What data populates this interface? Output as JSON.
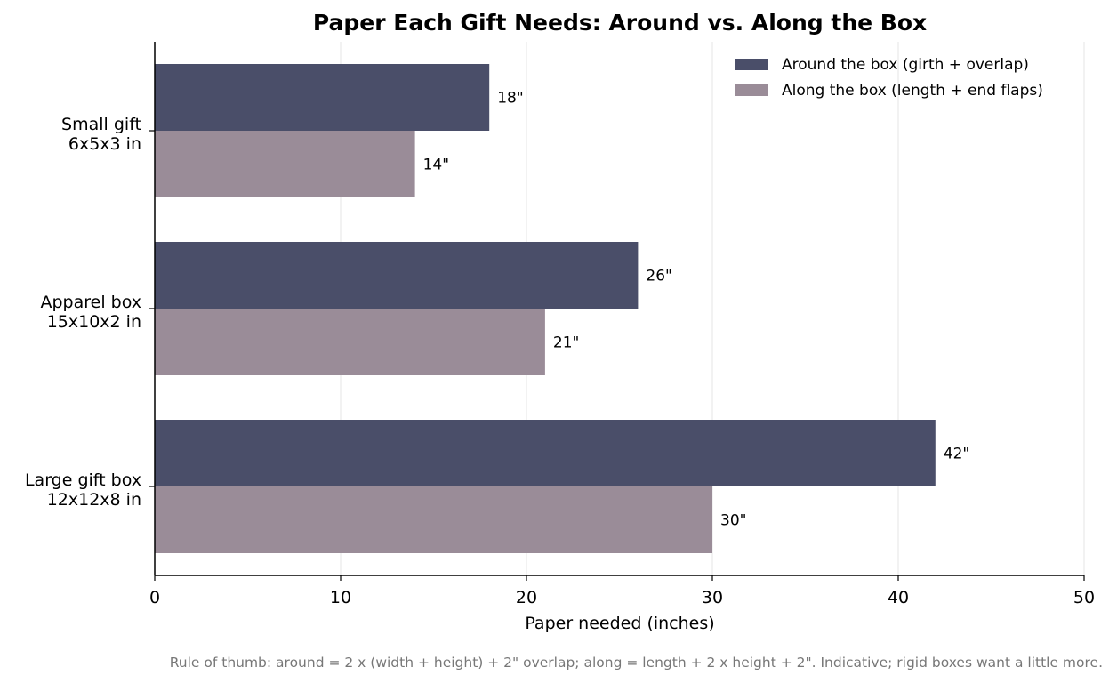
{
  "chart_data": {
    "type": "bar",
    "orientation": "horizontal",
    "title": "Paper Each Gift Needs: Around vs. Along the Box",
    "xlabel": "Paper needed (inches)",
    "ylabel": "",
    "xlim": [
      0,
      50
    ],
    "xticks": [
      0,
      10,
      20,
      30,
      40,
      50
    ],
    "grid": "vertical",
    "legend_position": "top-right",
    "categories": [
      [
        "Small gift",
        "6x5x3 in"
      ],
      [
        "Apparel box",
        "15x10x2 in"
      ],
      [
        "Large gift box",
        "12x12x8 in"
      ]
    ],
    "series": [
      {
        "name": "Around the box (girth + overlap)",
        "color": "#4a4e69",
        "values": [
          18,
          26,
          42
        ],
        "labels": [
          "18\"",
          "26\"",
          "42\""
        ]
      },
      {
        "name": "Along the box (length + end flaps)",
        "color": "#9a8c98",
        "values": [
          14,
          21,
          30
        ],
        "labels": [
          "14\"",
          "21\"",
          "30\""
        ]
      }
    ],
    "footnote": "Rule of thumb: around = 2 x (width + height) + 2\" overlap; along = length + 2 x height + 2\". Indicative; rigid boxes want a little more."
  }
}
